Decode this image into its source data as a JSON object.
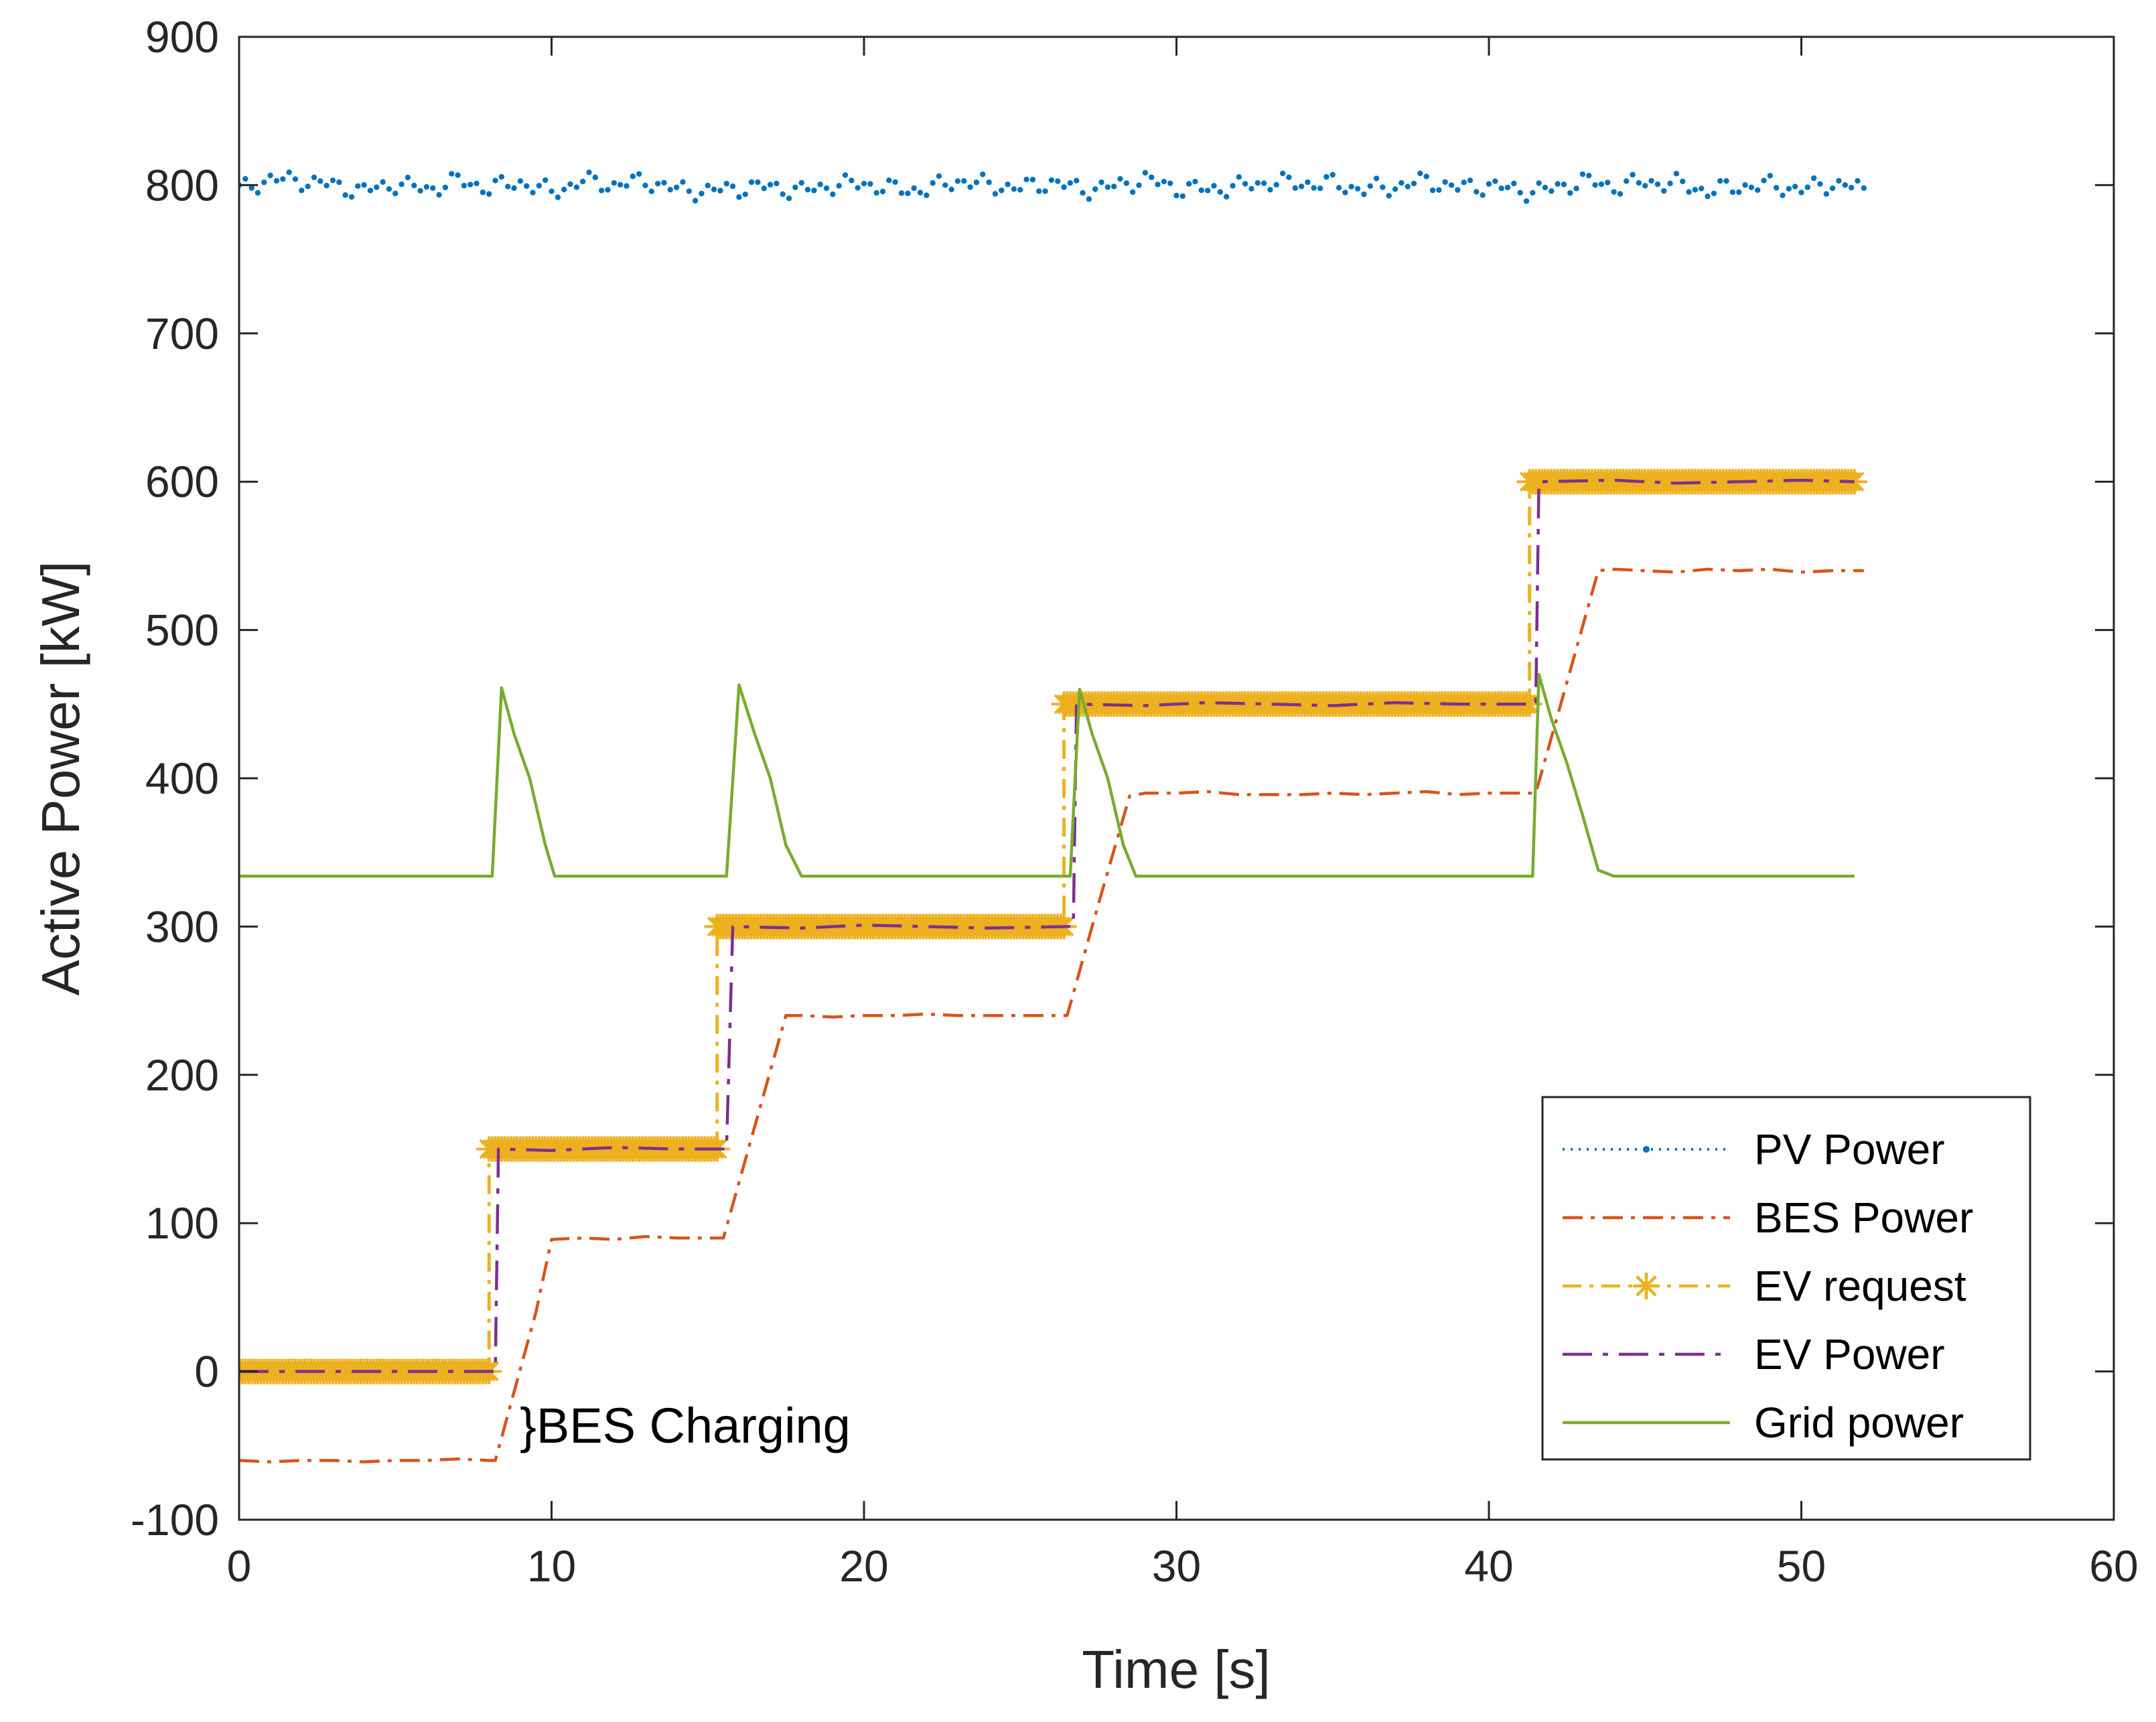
{
  "chart_data": {
    "type": "line",
    "title": "",
    "xlabel": "Time [s]",
    "ylabel": "Active Power [kW]",
    "xlim": [
      0,
      60
    ],
    "ylim": [
      -100,
      900
    ],
    "x_ticks": [
      0,
      10,
      20,
      30,
      40,
      50,
      60
    ],
    "y_ticks": [
      -100,
      0,
      100,
      200,
      300,
      400,
      500,
      600,
      700,
      800,
      900
    ],
    "x_tick_labels": [
      "0",
      "10",
      "20",
      "30",
      "40",
      "50",
      "60"
    ],
    "y_tick_labels": [
      "-100",
      "0",
      "100",
      "200",
      "300",
      "400",
      "500",
      "600",
      "700",
      "800",
      "900"
    ],
    "grid": false,
    "legend_position": "bottom-right",
    "annotations": [
      {
        "text": "}BES Charging",
        "x": 9.2,
        "y": -30
      }
    ],
    "series": [
      {
        "name": "PV Power",
        "color": "#0072BD",
        "style": "dotted-point",
        "x": [
          0,
          1,
          2,
          3,
          4,
          5,
          6,
          7,
          8,
          9,
          10,
          11,
          12,
          13,
          14,
          15,
          16,
          17,
          18,
          19,
          20,
          21,
          22,
          23,
          24,
          25,
          26,
          27,
          28,
          29,
          30,
          31,
          32,
          33,
          34,
          35,
          36,
          37,
          38,
          39,
          40,
          41,
          42,
          43,
          44,
          45,
          46,
          47,
          48,
          49,
          50,
          51,
          52
        ],
        "values": [
          797,
          804,
          803,
          800,
          796,
          801,
          797,
          803,
          798,
          802,
          795,
          803,
          800,
          803,
          797,
          796,
          798,
          799,
          796,
          800,
          801,
          797,
          797,
          803,
          800,
          798,
          802,
          797,
          799,
          804,
          798,
          797,
          799,
          802,
          801,
          801,
          797,
          799,
          803,
          798,
          800,
          796,
          797,
          803,
          799,
          802,
          801,
          796,
          799,
          800,
          797,
          801,
          798
        ]
      },
      {
        "name": "BES Power",
        "color": "#D95319",
        "style": "dash-dot",
        "x": [
          0,
          1,
          2,
          3,
          4,
          5,
          6,
          7,
          8,
          8.2,
          9.5,
          10,
          11,
          12,
          13,
          14,
          15,
          15.5,
          16.5,
          17.5,
          18,
          19,
          20,
          21,
          22,
          23,
          24,
          25,
          26,
          26.5,
          27.5,
          28.5,
          29,
          30,
          31,
          32,
          33,
          34,
          35,
          36,
          37,
          38,
          39,
          40,
          41,
          41.5,
          42.5,
          43.5,
          44,
          45,
          46,
          47,
          48,
          49,
          50,
          51,
          52
        ],
        "values": [
          -60,
          -61,
          -60,
          -60,
          -61,
          -60,
          -60,
          -59,
          -60,
          -60,
          40,
          89,
          90,
          89,
          91,
          90,
          90,
          90,
          165,
          240,
          240,
          239,
          240,
          240,
          241,
          240,
          240,
          240,
          240,
          240,
          315,
          388,
          390,
          390,
          391,
          389,
          389,
          389,
          390,
          389,
          390,
          391,
          389,
          390,
          390,
          390,
          465,
          540,
          541,
          540,
          539,
          541,
          540,
          541,
          539,
          540,
          540
        ]
      },
      {
        "name": "EV request",
        "color": "#EDB120",
        "style": "dash-dot-star",
        "x": [
          0,
          8.0,
          8.0,
          15.3,
          15.3,
          26.4,
          26.4,
          41.3,
          41.3,
          51.7
        ],
        "values": [
          0,
          0,
          150,
          150,
          300,
          300,
          450,
          450,
          600,
          600
        ]
      },
      {
        "name": "EV Power",
        "color": "#7E2F8E",
        "style": "long-dash-dot",
        "x": [
          0,
          2,
          4,
          6,
          8.0,
          8.2,
          8.3,
          10,
          12,
          14,
          15.6,
          15.6,
          15.8,
          18,
          20,
          22,
          24,
          26.5,
          26.7,
          26.8,
          29,
          31,
          33,
          35,
          37,
          39,
          41.3,
          41.5,
          41.6,
          44,
          46,
          48,
          50,
          51.7
        ],
        "values": [
          0,
          0,
          0,
          0,
          0,
          0,
          150,
          149,
          151,
          150,
          150,
          150,
          300,
          299,
          301,
          300,
          299,
          300,
          300,
          450,
          449,
          451,
          450,
          449,
          451,
          450,
          450,
          450,
          600,
          601,
          599,
          600,
          601,
          600
        ]
      },
      {
        "name": "Grid power",
        "color": "#77AC30",
        "style": "solid",
        "x": [
          0,
          2,
          4,
          6,
          8.0,
          8.1,
          8.4,
          8.8,
          9.3,
          9.8,
          10.1,
          11,
          13,
          15.0,
          15.3,
          15.6,
          16,
          16.5,
          17.0,
          17.5,
          18,
          20,
          22,
          24,
          26.3,
          26.6,
          26.9,
          27.3,
          27.8,
          28.3,
          28.7,
          30,
          32,
          34,
          36,
          38,
          40,
          41.2,
          41.4,
          41.6,
          42,
          42.5,
          43.0,
          43.5,
          44,
          46,
          48,
          50,
          51.7
        ],
        "values": [
          334,
          334,
          334,
          334,
          334,
          334,
          461,
          430,
          400,
          355,
          334,
          334,
          334,
          334,
          334,
          334,
          463,
          430,
          400,
          355,
          334,
          334,
          334,
          334,
          334,
          334,
          460,
          430,
          400,
          355,
          334,
          334,
          334,
          334,
          334,
          334,
          334,
          334,
          334,
          470,
          440,
          410,
          375,
          338,
          334,
          334,
          334,
          334,
          334
        ]
      }
    ]
  }
}
